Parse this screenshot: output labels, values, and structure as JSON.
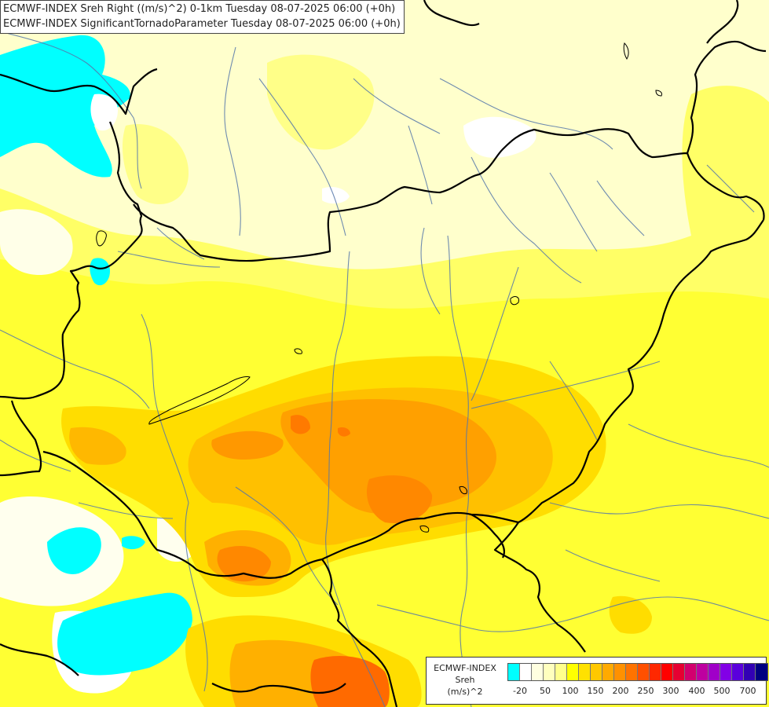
{
  "header": {
    "line1": "ECMWF-INDEX Sreh Right ((m/s)^2) 0-1km Tuesday 08-07-2025 06:00 (+0h)",
    "line2": "ECMWF-INDEX SignificantTornadoParameter Tuesday 08-07-2025 06:00 (+0h)"
  },
  "legend": {
    "line1": "ECMWF-INDEX",
    "line2": "Sreh",
    "line3": "(m/s)^2",
    "colors": [
      "#00ffff",
      "#ffffff",
      "#ffffe0",
      "#ffffbe",
      "#ffff8c",
      "#ffff00",
      "#ffe100",
      "#ffc800",
      "#ffaa00",
      "#ff9100",
      "#ff7300",
      "#ff5000",
      "#ff2800",
      "#ff0000",
      "#e60032",
      "#d2006e",
      "#be00a0",
      "#a000c8",
      "#8200e6",
      "#5a00dc",
      "#3200b4",
      "#000080"
    ],
    "ticks": [
      "-20",
      "50",
      "100",
      "150",
      "200",
      "250",
      "300",
      "400",
      "500",
      "700"
    ]
  },
  "map_colors": {
    "background": "#ffffcc",
    "cyan": "#00ffff",
    "white": "#ffffff",
    "pale": "#ffffaa",
    "yellow_light": "#ffff66",
    "yellow": "#ffee00",
    "gold": "#ffcc00",
    "orange": "#ffaa00",
    "dark_orange": "#ff7700",
    "red_orange": "#ff5500",
    "border_line": "#000000",
    "river_line": "#5577aa"
  }
}
